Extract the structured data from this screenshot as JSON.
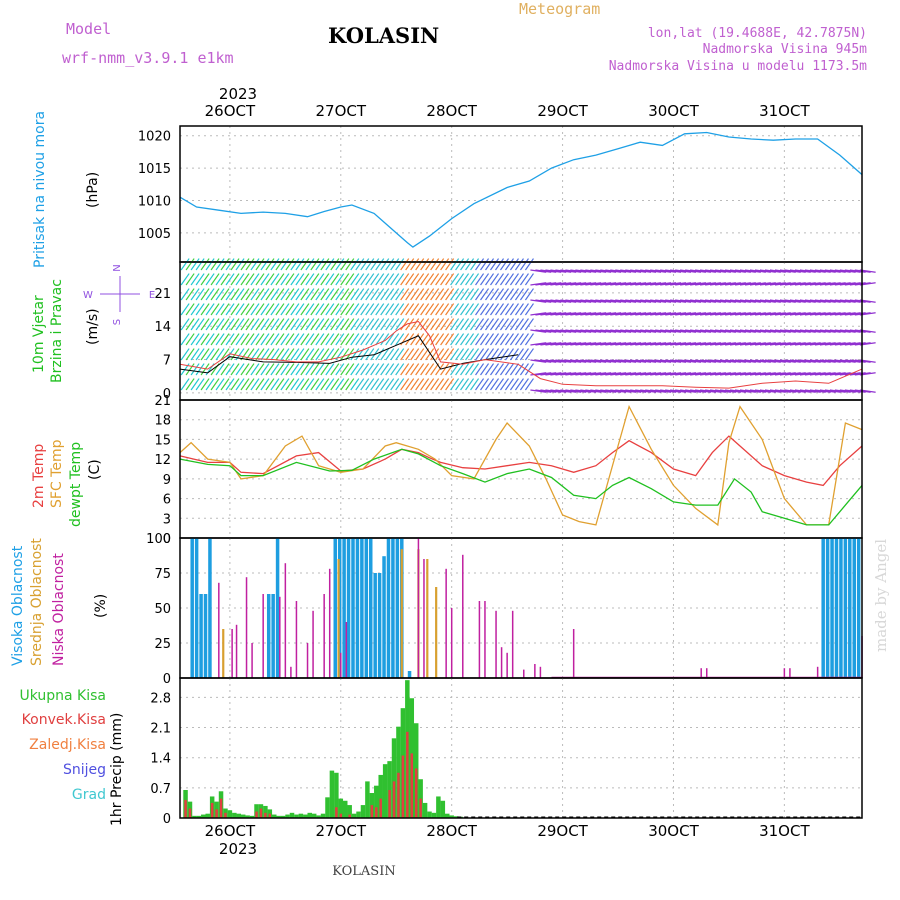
{
  "header": {
    "model_label": "Model",
    "model_name": "wrf-nmm_v3.9.1 e1km",
    "location": "KOLASIN",
    "chart_kind": "Meteogram",
    "coords": "lon,lat (19.4688E, 42.7875N)",
    "altitude": "Nadmorska Visina 945m",
    "model_altitude": "Nadmorska Visina u modelu 1173.5m",
    "footer_location": "KOLASIN",
    "watermark": "made by Angel"
  },
  "colors": {
    "pressure": "#1ea0e6",
    "temp2m": "#e84040",
    "sfc": "#e0a030",
    "dewpt": "#20c020",
    "cloud_high": "#1e9ee0",
    "cloud_mid": "#d8a030",
    "cloud_low": "#c020a0",
    "rain_total": "#30c030",
    "rain_conv": "#e04040",
    "snow": "#5050e0",
    "hail": "#40c8d0",
    "grid": "#bbbbbb"
  },
  "time_axis": {
    "top_year": "2023",
    "bottom_year": "2023",
    "days": [
      "26OCT",
      "27OCT",
      "28OCT",
      "29OCT",
      "30OCT",
      "31OCT"
    ],
    "day_start": 25.55,
    "day_end": 31.7
  },
  "chart_data": [
    {
      "panel": "pressure",
      "type": "line",
      "ylabel_title": "Pritisak na nivou mora",
      "ylabel_unit": "(hPa)",
      "yticks": [
        "1005",
        "1010",
        "1015",
        "1020"
      ],
      "ylim": [
        1000.5,
        1021.5
      ],
      "grid": true,
      "series": [
        {
          "x": [
            25.55,
            25.7,
            25.9,
            26.1,
            26.3,
            26.5,
            26.7,
            26.85,
            27.0,
            27.1,
            27.3,
            27.5,
            27.6,
            27.65,
            27.8,
            28.0,
            28.2,
            28.5,
            28.7,
            28.9,
            29.1,
            29.3,
            29.5,
            29.7,
            29.9,
            30.1,
            30.3,
            30.5,
            30.7,
            30.9,
            31.1,
            31.3,
            31.5,
            31.7
          ],
          "y": [
            1010.5,
            1009.0,
            1008.5,
            1008.0,
            1008.2,
            1008.0,
            1007.5,
            1008.3,
            1009.0,
            1009.3,
            1008.0,
            1005.0,
            1003.5,
            1002.8,
            1004.5,
            1007.2,
            1009.5,
            1012.0,
            1013.0,
            1015.0,
            1016.3,
            1017.0,
            1018.0,
            1019.0,
            1018.5,
            1020.3,
            1020.5,
            1019.8,
            1019.5,
            1019.3,
            1019.5,
            1019.5,
            1017.0,
            1014.0
          ]
        }
      ]
    },
    {
      "panel": "wind",
      "type": "line",
      "ylabel_title": "10m Vjetar",
      "ylabel_title2": "Brzina i Pravac",
      "ylabel_unit": "(m/s)",
      "yticks": [
        "0",
        "7",
        "14",
        "21"
      ],
      "ylim": [
        -1.5,
        27.5
      ],
      "grid": true,
      "compass": {
        "n": "N",
        "w": "W",
        "e": "E",
        "s": "S"
      },
      "series": [
        {
          "x": [
            25.55,
            25.8,
            26.0,
            26.3,
            26.6,
            26.9,
            27.1,
            27.3,
            27.5,
            27.7,
            27.9,
            28.1,
            28.3,
            28.6
          ],
          "y": [
            5.0,
            4.2,
            7.6,
            6.5,
            6.4,
            6.2,
            7.5,
            8.0,
            10.0,
            12.0,
            5.0,
            6.2,
            7.0,
            8.0
          ]
        },
        {
          "x": [
            25.55,
            25.8,
            26.0,
            26.2,
            26.4,
            26.6,
            26.8,
            27.0,
            27.2,
            27.4,
            27.5,
            27.6,
            27.7,
            27.8,
            27.9,
            28.1,
            28.3,
            28.6,
            28.8,
            29.0,
            29.3,
            29.6,
            29.9,
            30.2,
            30.5,
            30.8,
            31.1,
            31.4,
            31.7
          ],
          "y": [
            6.0,
            5.0,
            8.2,
            7.2,
            7.0,
            6.5,
            6.5,
            7.5,
            9.0,
            11.0,
            13.0,
            14.5,
            15.0,
            12.0,
            6.5,
            6.0,
            7.0,
            6.0,
            3.0,
            1.8,
            1.5,
            1.5,
            1.5,
            1.2,
            1.0,
            2.0,
            2.5,
            2.0,
            5.0
          ]
        }
      ]
    },
    {
      "panel": "temperature",
      "type": "line",
      "ylabel_title": "2m Temp",
      "ylabel_title2": "SFC Temp",
      "ylabel_title3": "dewpt Temp",
      "ylabel_unit": "(C)",
      "yticks": [
        "0",
        "3",
        "6",
        "9",
        "12",
        "15",
        "18",
        "21"
      ],
      "ylim": [
        0,
        21
      ],
      "grid": true,
      "series": [
        {
          "x": [
            25.55,
            25.8,
            26.0,
            26.1,
            26.3,
            26.6,
            26.8,
            27.0,
            27.2,
            27.4,
            27.55,
            27.7,
            27.8,
            27.9,
            28.1,
            28.3,
            28.5,
            28.7,
            28.9,
            29.1,
            29.3,
            29.45,
            29.6,
            29.8,
            30.0,
            30.2,
            30.35,
            30.5,
            30.6,
            30.8,
            31.0,
            31.2,
            31.35,
            31.5,
            31.7
          ],
          "y": [
            12.5,
            11.5,
            11.5,
            10.0,
            9.8,
            12.5,
            13.0,
            10.2,
            10.5,
            12.0,
            13.5,
            13.0,
            12.2,
            11.5,
            10.7,
            10.5,
            11.0,
            11.5,
            11.0,
            10.0,
            11.0,
            13.0,
            14.8,
            13.0,
            10.5,
            9.5,
            13.0,
            15.5,
            14.0,
            11.0,
            9.5,
            8.5,
            8.0,
            11.0,
            14.0
          ]
        },
        {
          "x": [
            25.55,
            25.65,
            25.8,
            26.0,
            26.1,
            26.3,
            26.5,
            26.65,
            26.8,
            27.0,
            27.2,
            27.4,
            27.5,
            27.6,
            27.7,
            27.85,
            28.0,
            28.2,
            28.4,
            28.5,
            28.7,
            28.85,
            29.0,
            29.15,
            29.3,
            29.5,
            29.6,
            29.8,
            30.0,
            30.2,
            30.4,
            30.5,
            30.6,
            30.8,
            31.0,
            31.2,
            31.4,
            31.55,
            31.7
          ],
          "y": [
            13.0,
            14.5,
            12.0,
            11.5,
            9.0,
            9.5,
            14.0,
            15.5,
            11.0,
            10.0,
            10.5,
            14.0,
            14.5,
            14.0,
            13.5,
            12.0,
            9.5,
            9.0,
            15.0,
            17.5,
            14.0,
            9.0,
            3.5,
            2.5,
            2.0,
            14.0,
            20.0,
            13.5,
            8.0,
            4.5,
            2.0,
            14.5,
            20.0,
            15.0,
            6.0,
            2.0,
            2.0,
            17.5,
            16.5
          ]
        },
        {
          "x": [
            25.55,
            25.8,
            26.0,
            26.1,
            26.3,
            26.6,
            26.9,
            27.1,
            27.3,
            27.55,
            27.7,
            27.9,
            28.1,
            28.3,
            28.5,
            28.7,
            28.9,
            29.1,
            29.3,
            29.45,
            29.6,
            29.8,
            30.0,
            30.2,
            30.4,
            30.55,
            30.7,
            30.8,
            31.0,
            31.2,
            31.4,
            31.55,
            31.7
          ],
          "y": [
            12.0,
            11.2,
            11.0,
            9.5,
            9.5,
            11.5,
            10.2,
            10.3,
            12.0,
            13.5,
            12.8,
            11.0,
            9.8,
            8.5,
            9.8,
            10.5,
            9.2,
            6.5,
            6.0,
            8.0,
            9.2,
            7.5,
            5.5,
            5.0,
            5.0,
            9.0,
            7.0,
            4.0,
            3.0,
            2.0,
            2.0,
            5.0,
            8.0
          ]
        }
      ]
    },
    {
      "panel": "clouds",
      "type": "bar",
      "ylabel_title": "Visoka Oblacnost",
      "ylabel_title2": "Srednja Oblacnost",
      "ylabel_title3": "Niska Oblacnost",
      "ylabel_unit": "(%)",
      "yticks": [
        "0",
        "25",
        "50",
        "75",
        "100"
      ],
      "ylim": [
        0,
        100
      ],
      "grid": true,
      "series": [
        {
          "name": "Visoka Oblacnost",
          "x": [
            25.66,
            25.7,
            25.74,
            25.78,
            25.82,
            26.35,
            26.39,
            26.43,
            26.95,
            26.99,
            27.03,
            27.07,
            27.11,
            27.15,
            27.19,
            27.23,
            27.27,
            27.31,
            27.35,
            27.39,
            27.43,
            27.47,
            27.51,
            27.55,
            27.62,
            31.35,
            31.39,
            31.43,
            31.47,
            31.51,
            31.55,
            31.59,
            31.63,
            31.67
          ],
          "y": [
            100,
            100,
            60,
            60,
            100,
            60,
            60,
            100,
            100,
            100,
            100,
            100,
            100,
            100,
            100,
            100,
            100,
            75,
            75,
            87,
            100,
            100,
            100,
            100,
            5,
            100,
            100,
            100,
            100,
            100,
            100,
            100,
            100,
            100
          ]
        },
        {
          "name": "Srednja Oblacnost",
          "x": [
            25.94,
            26.98,
            27.55,
            27.7,
            27.78,
            27.86
          ],
          "y": [
            35,
            85,
            92,
            92,
            85,
            65
          ]
        },
        {
          "name": "Niska Oblacnost",
          "x": [
            25.9,
            26.02,
            26.06,
            26.15,
            26.2,
            26.3,
            26.45,
            26.5,
            26.55,
            26.6,
            26.7,
            26.75,
            26.85,
            26.9,
            27.0,
            27.05,
            27.7,
            27.75,
            27.95,
            28.0,
            28.1,
            28.25,
            28.3,
            28.4,
            28.45,
            28.5,
            28.55,
            28.65,
            28.75,
            28.8,
            29.1,
            30.25,
            30.3,
            31.0,
            31.05,
            31.3,
            31.7
          ],
          "y": [
            68,
            35,
            38,
            72,
            25,
            60,
            58,
            82,
            8,
            55,
            25,
            48,
            60,
            78,
            18,
            40,
            100,
            85,
            78,
            50,
            88,
            55,
            55,
            48,
            22,
            18,
            48,
            6,
            10,
            8,
            35,
            7,
            7,
            7,
            7,
            8,
            30
          ]
        }
      ]
    },
    {
      "panel": "precipitation",
      "type": "bar",
      "ylabel_unit": "1hr Precip (mm)",
      "legend": [
        "Ukupna Kisa",
        "Konvek.Kisa",
        "Zaledj.Kisa",
        "Snijeg",
        "Grad"
      ],
      "yticks": [
        "0",
        "0.7",
        "1.4",
        "2.1",
        "2.8"
      ],
      "ylim": [
        0,
        3.25
      ],
      "grid": true,
      "series": [
        {
          "name": "Ukupna Kisa",
          "x": [
            25.6,
            25.64,
            25.68,
            25.72,
            25.76,
            25.8,
            25.84,
            25.88,
            25.92,
            25.96,
            26.0,
            26.04,
            26.08,
            26.12,
            26.16,
            26.2,
            26.24,
            26.28,
            26.32,
            26.36,
            26.4,
            26.44,
            26.48,
            26.52,
            26.56,
            26.6,
            26.64,
            26.68,
            26.72,
            26.76,
            26.8,
            26.84,
            26.88,
            26.92,
            26.96,
            27.0,
            27.04,
            27.08,
            27.12,
            27.16,
            27.2,
            27.24,
            27.28,
            27.32,
            27.36,
            27.4,
            27.44,
            27.48,
            27.52,
            27.56,
            27.6,
            27.64,
            27.68,
            27.72,
            27.76,
            27.8,
            27.84,
            27.88,
            27.92,
            27.96,
            28.0,
            28.04,
            28.08
          ],
          "y": [
            0.65,
            0.38,
            0.05,
            0.05,
            0.08,
            0.1,
            0.5,
            0.38,
            0.62,
            0.22,
            0.18,
            0.12,
            0.1,
            0.08,
            0.06,
            0.05,
            0.32,
            0.32,
            0.28,
            0.2,
            0.08,
            0.05,
            0.05,
            0.08,
            0.12,
            0.08,
            0.1,
            0.08,
            0.12,
            0.1,
            0.06,
            0.1,
            0.48,
            1.1,
            1.05,
            0.45,
            0.4,
            0.3,
            0.1,
            0.15,
            0.3,
            0.85,
            0.58,
            0.75,
            1.0,
            1.25,
            1.32,
            1.85,
            2.12,
            2.55,
            3.2,
            2.78,
            2.2,
            0.9,
            0.35,
            0.15,
            0.12,
            0.5,
            0.4,
            0.1,
            0.06,
            0.04,
            0.03
          ]
        },
        {
          "name": "Konvek.Kisa",
          "x": [
            25.6,
            25.64,
            25.84,
            25.88,
            25.92,
            25.96,
            26.24,
            26.28,
            26.32,
            26.36,
            26.96,
            27.0,
            27.08,
            27.28,
            27.32,
            27.36,
            27.44,
            27.48,
            27.52,
            27.56,
            27.6,
            27.64,
            27.68,
            27.72
          ],
          "y": [
            0.42,
            0.22,
            0.35,
            0.2,
            0.45,
            0.12,
            0.15,
            0.22,
            0.12,
            0.1,
            0.25,
            0.1,
            0.08,
            0.3,
            0.25,
            0.45,
            0.65,
            0.85,
            1.05,
            1.45,
            2.0,
            1.5,
            1.15,
            0.45
          ]
        }
      ]
    }
  ]
}
